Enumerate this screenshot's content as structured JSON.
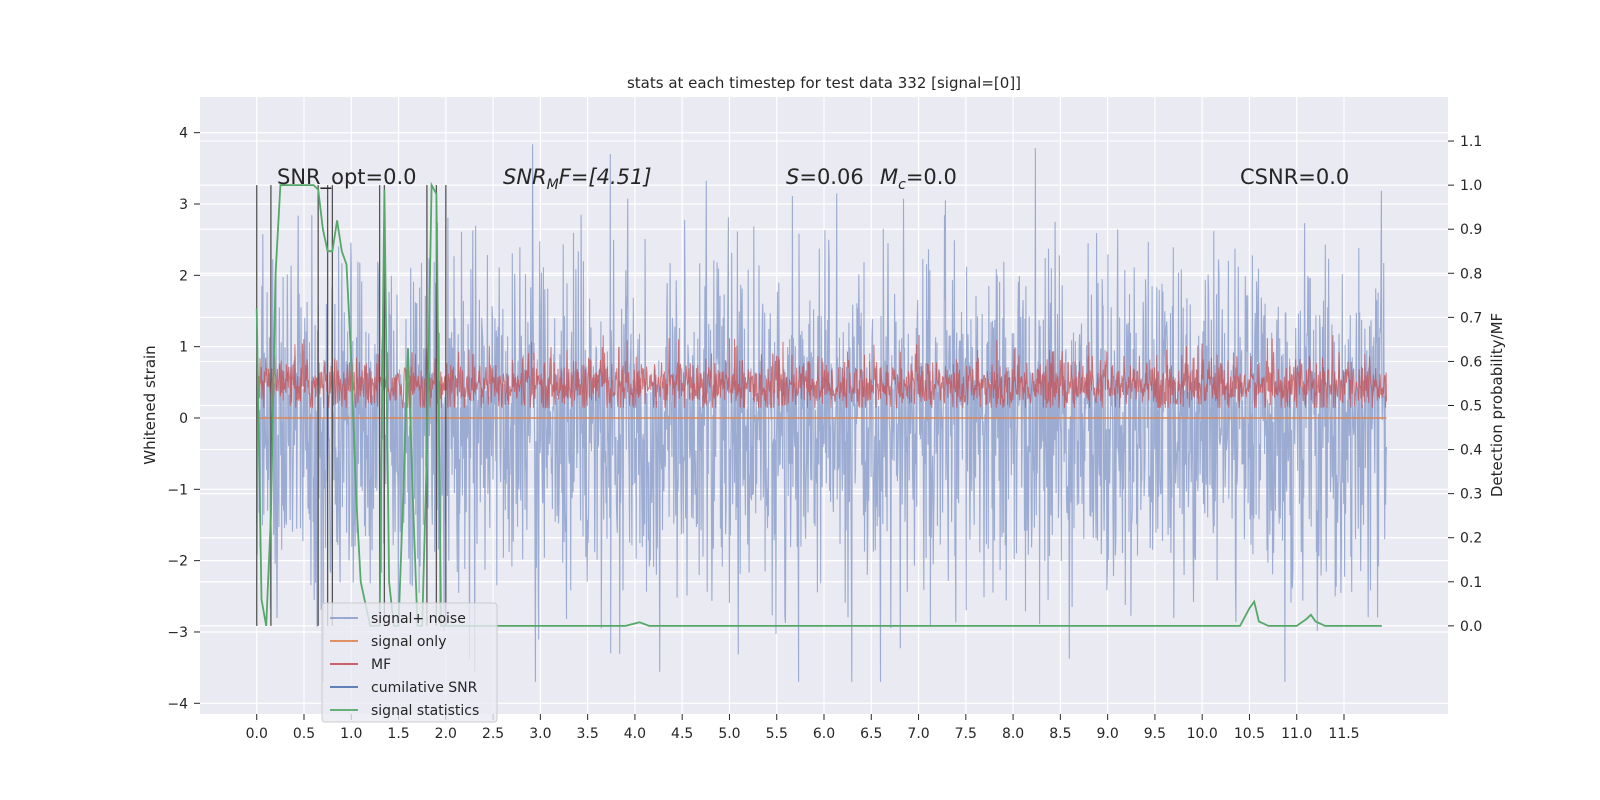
{
  "chart_data": {
    "type": "line",
    "title": "stats at each timestep for test data 332 [signal=[0]]",
    "xlabel": "",
    "ylabel": "Whitened strain",
    "y2label": "Detection probability/MF",
    "xlim": [
      -0.6,
      12.6
    ],
    "ylim": [
      -4.15,
      4.5
    ],
    "y2lim": [
      -0.2,
      1.2
    ],
    "x_ticks": [
      "0.0",
      "0.5",
      "1.0",
      "1.5",
      "2.0",
      "2.5",
      "3.0",
      "3.5",
      "4.0",
      "4.5",
      "5.0",
      "5.5",
      "6.0",
      "6.5",
      "7.0",
      "7.5",
      "8.0",
      "8.5",
      "9.0",
      "9.5",
      "10.0",
      "10.5",
      "11.0",
      "11.5"
    ],
    "y_ticks": [
      "4",
      "3",
      "2",
      "1",
      "0",
      "−1",
      "−2",
      "−3",
      "−4"
    ],
    "y2_ticks": [
      "1.1",
      "1.0",
      "0.9",
      "0.8",
      "0.7",
      "0.6",
      "0.5",
      "0.4",
      "0.3",
      "0.2",
      "0.1",
      "0.0"
    ],
    "grid": true,
    "annotations": {
      "snr_opt": "SNR_opt=0.0",
      "snr_mf_sym": "SNR",
      "snr_mf_sub": "M",
      "snr_mf_rest": "F=[4.51]",
      "s_sym": "S",
      "s_rest": "=0.06",
      "mc_sym": "M",
      "mc_sub": "c",
      "mc_rest": "=0.0",
      "csnr": "CSNR=0.0"
    },
    "legend_position": "lower-left",
    "colors": {
      "noise": "#8da0cb",
      "signal": "#dd8452",
      "mf": "#c44e52",
      "cumulative": "#4c72b0",
      "stats": "#55a868",
      "grid": "#ffffff",
      "background": "#eaeaf2"
    },
    "series": [
      {
        "name": "signal+ noise",
        "key": "noise",
        "summary": "whitened noise, approx mean -0.1, amplitude about ±2.5, peaks to 4.1 and -3.7"
      },
      {
        "name": "signal only",
        "key": "signal",
        "values_constant": 0.0
      },
      {
        "name": "MF",
        "key": "mf",
        "axis": "right",
        "summary": "matched-filter output, approx 0.5 to 0.6 with peaks to 0.66"
      },
      {
        "name": "cumilative SNR",
        "key": "cumulative"
      },
      {
        "name": "signal statistics",
        "key": "stats",
        "axis": "right",
        "x": [
          0.0,
          0.05,
          0.1,
          0.15,
          0.2,
          0.25,
          0.3,
          0.4,
          0.5,
          0.6,
          0.65,
          0.7,
          0.75,
          0.8,
          0.85,
          0.9,
          0.95,
          1.0,
          1.05,
          1.1,
          1.2,
          1.3,
          1.35,
          1.4,
          1.45,
          1.5,
          1.55,
          1.6,
          1.65,
          1.7,
          1.75,
          1.8,
          1.85,
          1.9,
          1.95,
          2.0,
          2.05,
          2.1,
          2.2,
          2.5,
          3.0,
          3.5,
          3.9,
          4.05,
          4.15,
          5.0,
          6.0,
          7.0,
          8.0,
          9.0,
          10.0,
          10.4,
          10.5,
          10.55,
          10.6,
          10.7,
          10.8,
          11.0,
          11.1,
          11.15,
          11.2,
          11.3,
          11.5,
          11.9
        ],
        "values": [
          0.72,
          0.06,
          0.0,
          0.25,
          0.8,
          1.0,
          1.0,
          1.0,
          1.0,
          1.0,
          0.99,
          0.9,
          0.85,
          0.85,
          0.92,
          0.85,
          0.82,
          0.6,
          0.3,
          0.1,
          0.0,
          0.0,
          0.99,
          0.1,
          0.0,
          0.0,
          0.3,
          0.63,
          0.3,
          0.0,
          0.0,
          0.4,
          1.0,
          0.98,
          0.0,
          0.0,
          0.0,
          0.0,
          0.0,
          0.0,
          0.0,
          0.0,
          0.0,
          0.008,
          0.0,
          0.0,
          0.0,
          0.0,
          0.0,
          0.0,
          0.0,
          0.0,
          0.04,
          0.055,
          0.01,
          0.0,
          0.0,
          0.0,
          0.015,
          0.025,
          0.01,
          0.0,
          0.0,
          0.0
        ]
      }
    ],
    "grey_markers": [
      0.0,
      0.15,
      0.65,
      0.75,
      0.8,
      1.3,
      1.35,
      1.8,
      1.9,
      2.0
    ]
  }
}
